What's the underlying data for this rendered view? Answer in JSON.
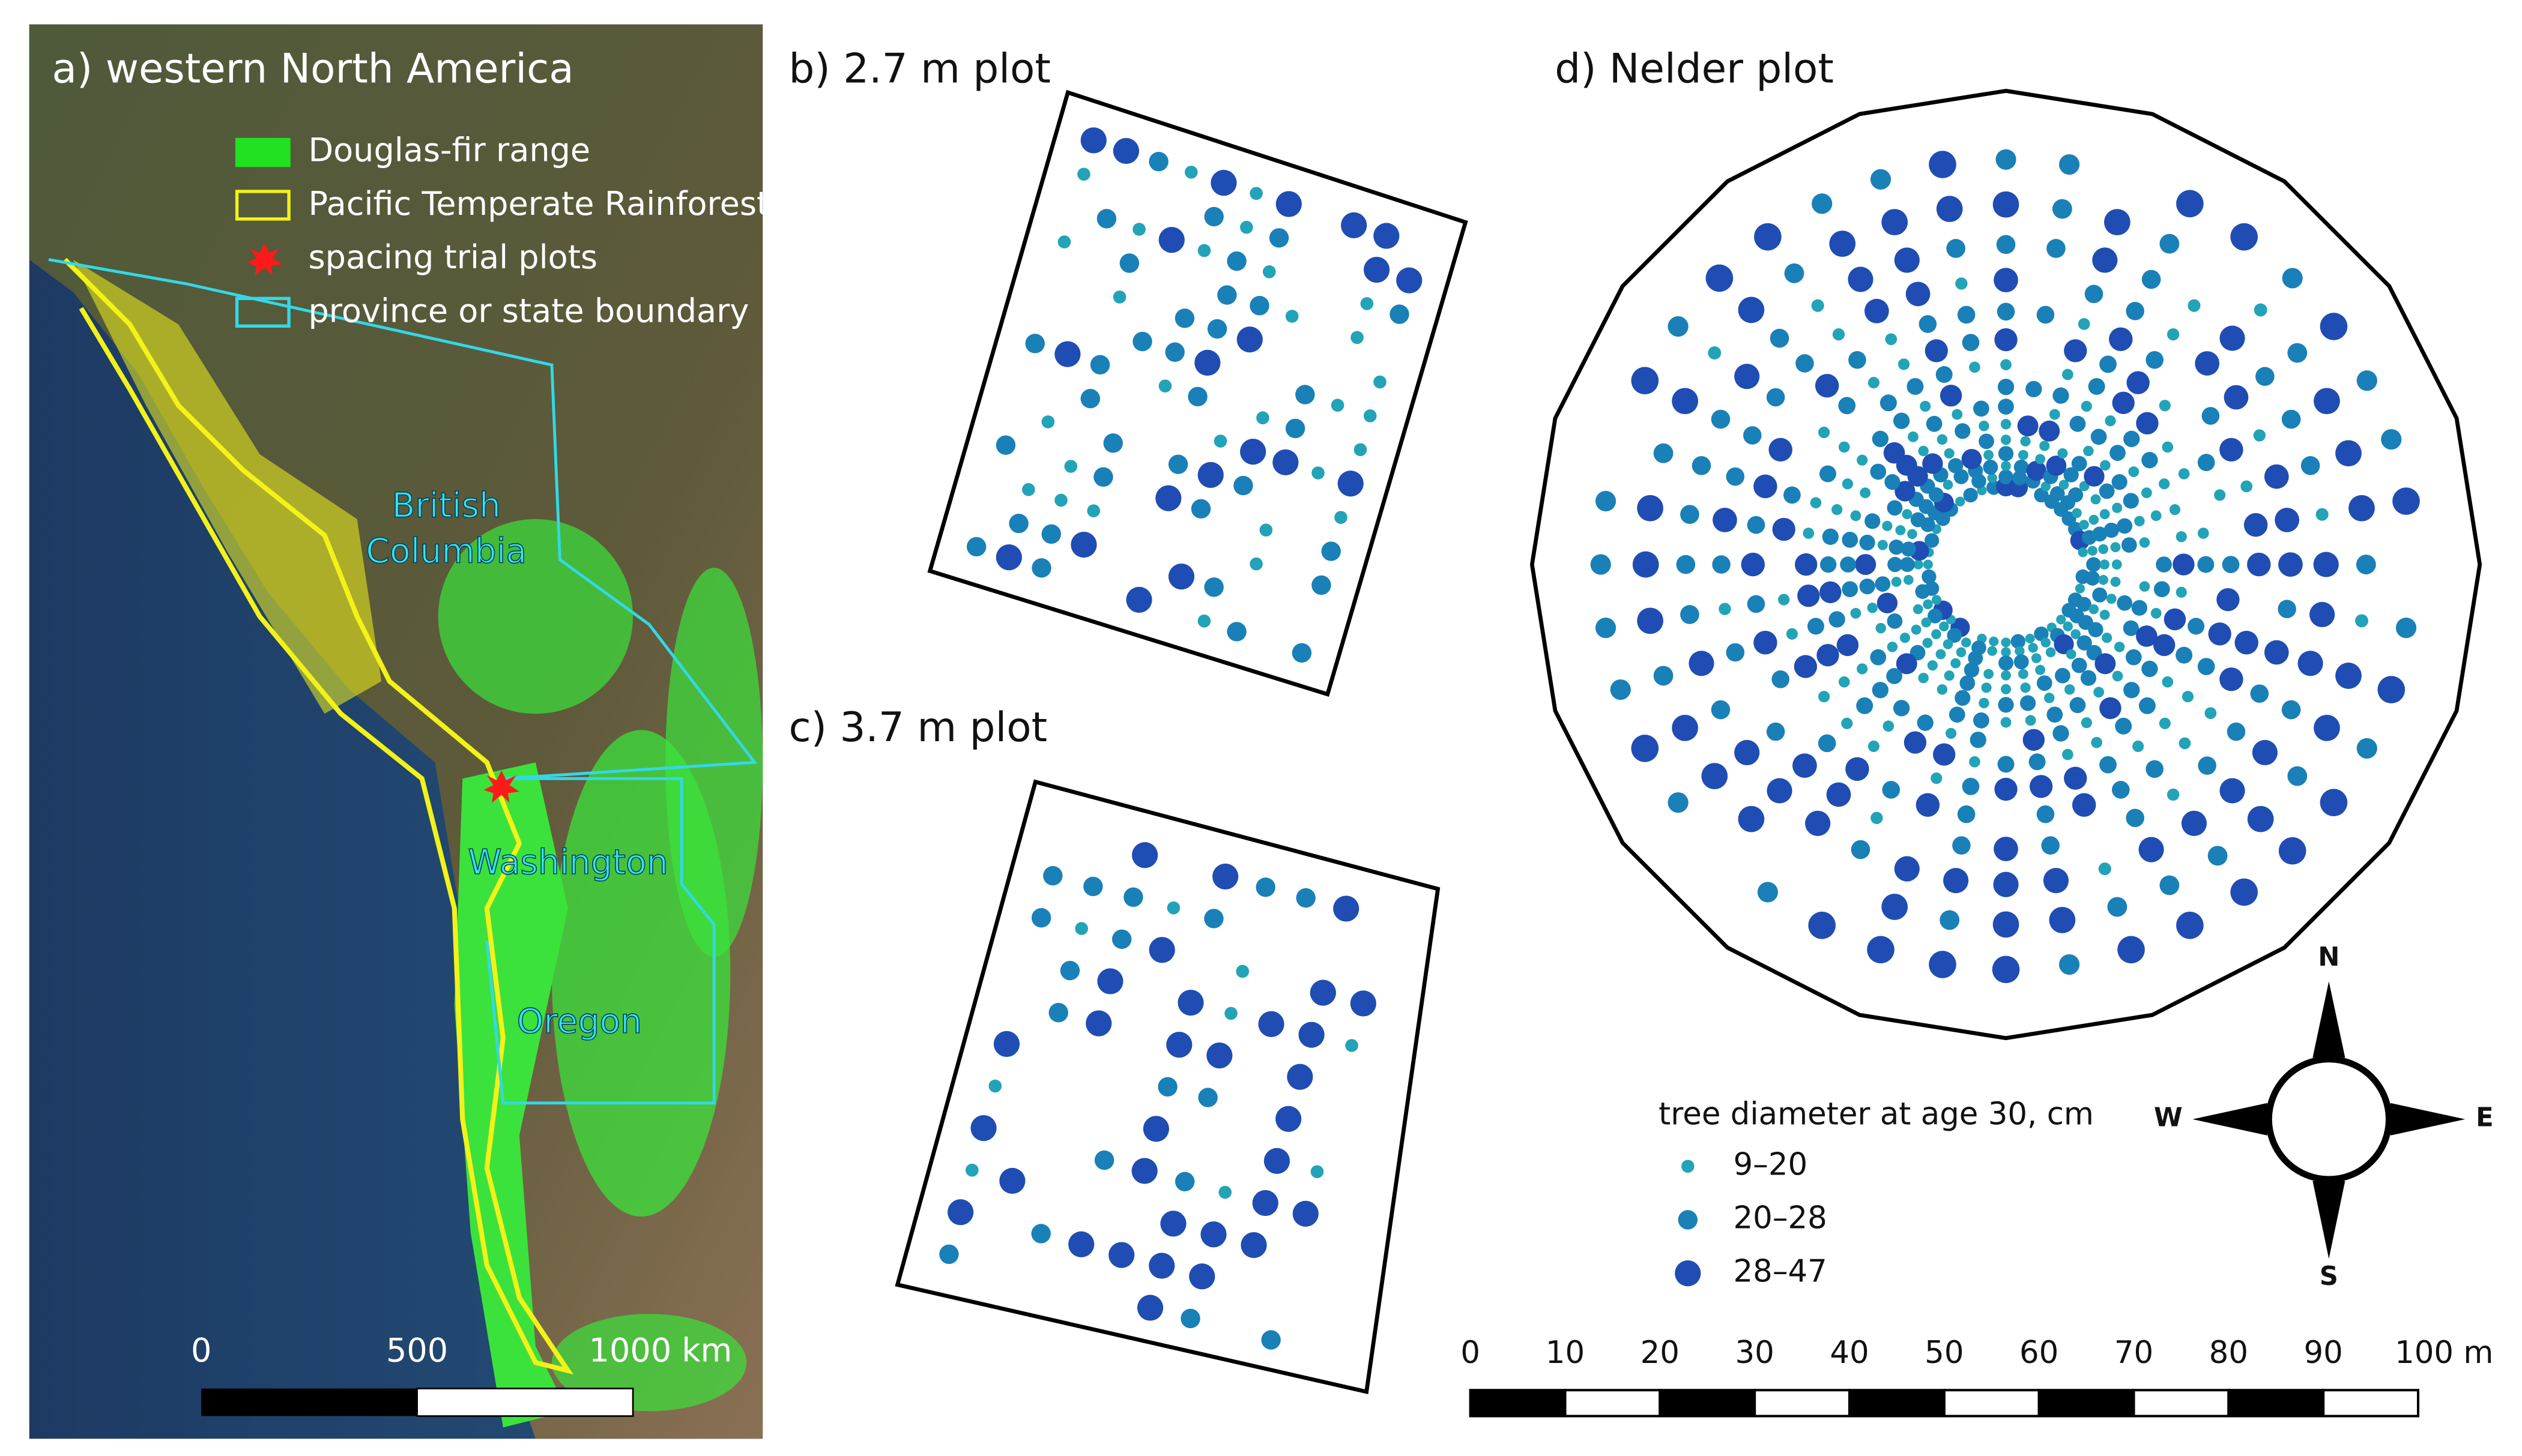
{
  "map": {
    "title": "a) western North America",
    "legend": [
      "Douglas-fir range",
      "Pacific Temperate Rainforest",
      "spacing trial plots",
      "province or state boundary"
    ],
    "places": [
      {
        "lines": [
          "British",
          "Columbia"
        ]
      },
      {
        "lines": [
          "Washington"
        ]
      },
      {
        "lines": [
          "Oregon"
        ]
      }
    ],
    "scale_bar": [
      "0",
      "500",
      "1000 km"
    ]
  },
  "plots": {
    "titles": [
      "b) 2.7 m plot",
      "c) 3.7 m plot",
      "d) Nelder plot"
    ]
  },
  "diameter_legend": {
    "title": "tree diameter at age 30, cm",
    "classes": [
      {
        "label": "9–20",
        "color": "#23a3b8"
      },
      {
        "label": "20–28",
        "color": "#1a80b8"
      },
      {
        "label": "28–47",
        "color": "#1f4db3"
      }
    ]
  },
  "compass": [
    "N",
    "E",
    "S",
    "W"
  ],
  "scale_bar_m": [
    "0",
    "10",
    "20",
    "30",
    "40",
    "50",
    "60",
    "70",
    "80",
    "90",
    "100 m"
  ]
}
